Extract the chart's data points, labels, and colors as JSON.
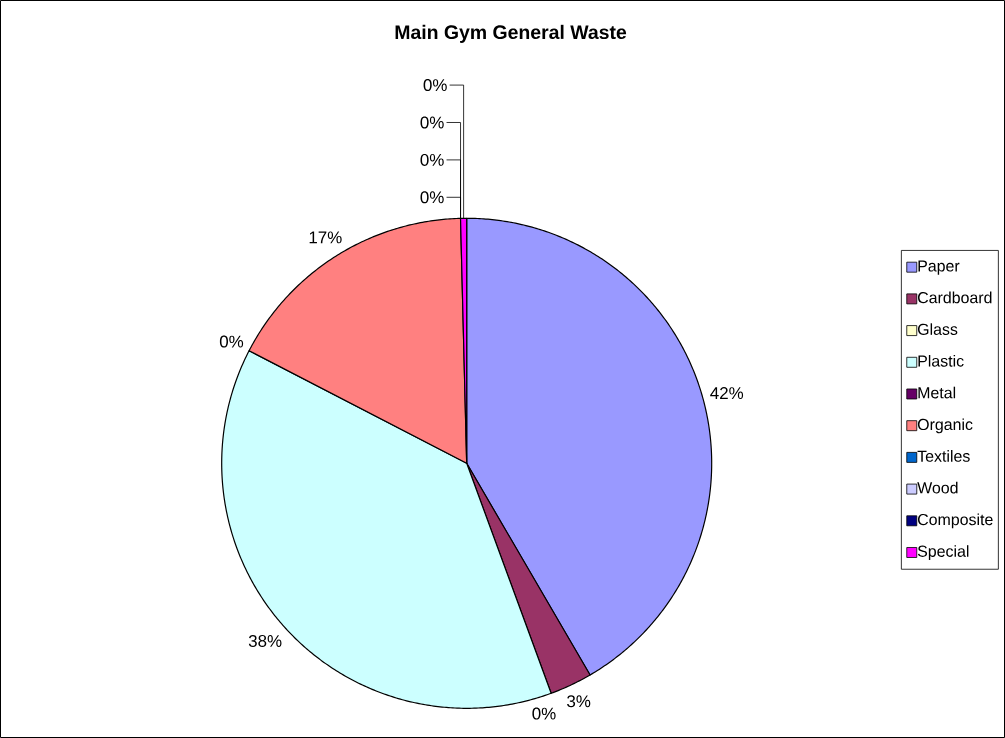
{
  "chart_data": {
    "type": "pie",
    "title": "Main Gym General Waste",
    "categories": [
      "Paper",
      "Cardboard",
      "Glass",
      "Plastic",
      "Metal",
      "Organic",
      "Textiles",
      "Wood",
      "Composite",
      "Special"
    ],
    "values": [
      41.6,
      2.8,
      0,
      38.2,
      0,
      17.0,
      0,
      0,
      0,
      0.4
    ],
    "value_labels": [
      "42%",
      "3%",
      "0%",
      "38%",
      "0%",
      "17%",
      "0%",
      "0%",
      "0%",
      "0%"
    ],
    "colors": [
      "#9999ff",
      "#993366",
      "#ffffcc",
      "#ccffff",
      "#660066",
      "#ff8080",
      "#0066cc",
      "#ccccff",
      "#000080",
      "#ff00ff"
    ],
    "legend": "right"
  }
}
